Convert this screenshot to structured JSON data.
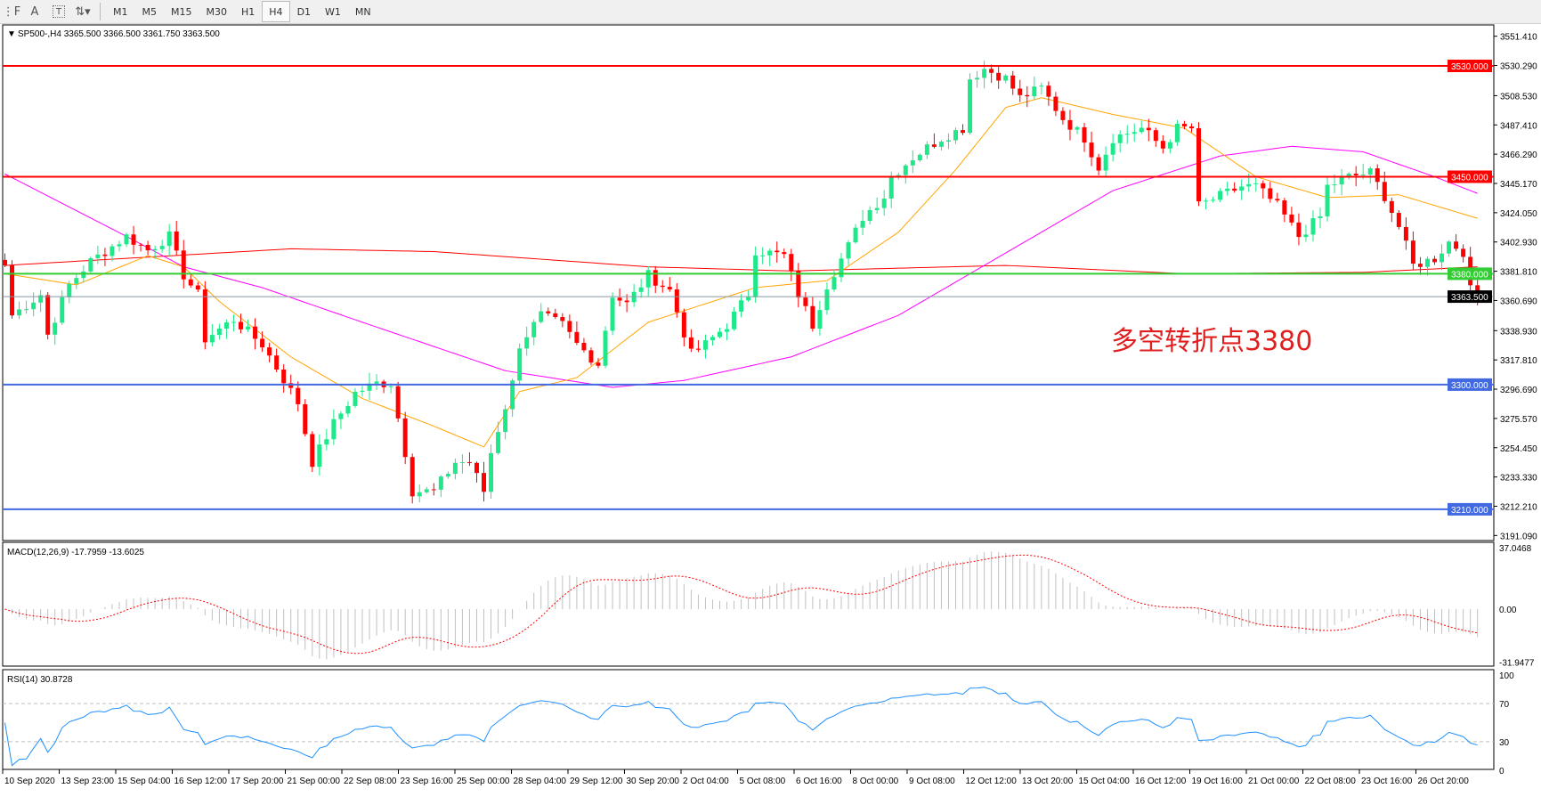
{
  "toolbar": {
    "tools": [
      {
        "icon": "fibo-icon"
      },
      {
        "icon": "text-icon",
        "label": "A"
      },
      {
        "icon": "text-label-icon",
        "label": "T"
      },
      {
        "icon": "arrows-icon"
      }
    ],
    "timeframes": [
      "M1",
      "M5",
      "M15",
      "M30",
      "H1",
      "H4",
      "D1",
      "W1",
      "MN"
    ],
    "active_timeframe": "H4"
  },
  "chart_data": {
    "type": "candlestick",
    "symbol_header": "SP500-,H4  3365.500 3366.500 3361.750 3363.500",
    "ylim": [
      3191.09,
      3551.41
    ],
    "price_ticks": [
      "3551.410",
      "3530.290",
      "3508.530",
      "3487.410",
      "3466.290",
      "3445.170",
      "3424.050",
      "3402.930",
      "3381.810",
      "3360.690",
      "3338.930",
      "3317.810",
      "3296.690",
      "3275.570",
      "3254.450",
      "3233.330",
      "3212.210",
      "3191.090"
    ],
    "time_labels": [
      "10 Sep 2020",
      "13 Sep 23:00",
      "15 Sep 04:00",
      "16 Sep 12:00",
      "17 Sep 20:00",
      "21 Sep 00:00",
      "22 Sep 08:00",
      "23 Sep 16:00",
      "25 Sep 00:00",
      "28 Sep 04:00",
      "29 Sep 12:00",
      "30 Sep 20:00",
      "2 Oct 04:00",
      "5 Oct 08:00",
      "6 Oct 16:00",
      "8 Oct 00:00",
      "9 Oct 08:00",
      "12 Oct 12:00",
      "13 Oct 20:00",
      "15 Oct 04:00",
      "16 Oct 12:00",
      "19 Oct 16:00",
      "21 Oct 00:00",
      "22 Oct 08:00",
      "23 Oct 16:00",
      "26 Oct 20:00"
    ],
    "bar_count": 207,
    "close_keypoints": [
      [
        0,
        3386
      ],
      [
        1,
        3350
      ],
      [
        5,
        3365
      ],
      [
        6,
        3336
      ],
      [
        9,
        3372
      ],
      [
        12,
        3389
      ],
      [
        17,
        3407
      ],
      [
        20,
        3397
      ],
      [
        23,
        3407
      ],
      [
        25,
        3379
      ],
      [
        27,
        3365
      ],
      [
        28,
        3333
      ],
      [
        32,
        3347
      ],
      [
        36,
        3329
      ],
      [
        41,
        3287
      ],
      [
        43,
        3244
      ],
      [
        46,
        3272
      ],
      [
        49,
        3294
      ],
      [
        52,
        3301
      ],
      [
        54,
        3301
      ],
      [
        56,
        3251
      ],
      [
        57,
        3223
      ],
      [
        60,
        3223
      ],
      [
        63,
        3244
      ],
      [
        65,
        3244
      ],
      [
        67,
        3223
      ],
      [
        68,
        3251
      ],
      [
        71,
        3301
      ],
      [
        72,
        3329
      ],
      [
        75,
        3350
      ],
      [
        78,
        3343
      ],
      [
        80,
        3329
      ],
      [
        83,
        3315
      ],
      [
        85,
        3365
      ],
      [
        87,
        3358
      ],
      [
        90,
        3379
      ],
      [
        93,
        3368
      ],
      [
        96,
        3322
      ],
      [
        98,
        3329
      ],
      [
        101,
        3343
      ],
      [
        104,
        3365
      ],
      [
        105,
        3397
      ],
      [
        109,
        3393
      ],
      [
        111,
        3365
      ],
      [
        113,
        3343
      ],
      [
        115,
        3372
      ],
      [
        118,
        3400
      ],
      [
        120,
        3421
      ],
      [
        123,
        3436
      ],
      [
        124,
        3450
      ],
      [
        127,
        3464
      ],
      [
        131,
        3478
      ],
      [
        134,
        3485
      ],
      [
        135,
        3521
      ],
      [
        137,
        3528
      ],
      [
        140,
        3521
      ],
      [
        142,
        3507
      ],
      [
        145,
        3514
      ],
      [
        148,
        3492
      ],
      [
        151,
        3478
      ],
      [
        153,
        3457
      ],
      [
        155,
        3478
      ],
      [
        159,
        3485
      ],
      [
        162,
        3471
      ],
      [
        164,
        3485
      ],
      [
        166,
        3485
      ],
      [
        167,
        3429
      ],
      [
        170,
        3436
      ],
      [
        173,
        3443
      ],
      [
        175,
        3443
      ],
      [
        178,
        3429
      ],
      [
        181,
        3407
      ],
      [
        184,
        3421
      ],
      [
        185,
        3443
      ],
      [
        188,
        3450
      ],
      [
        191,
        3453
      ],
      [
        193,
        3436
      ],
      [
        195,
        3414
      ],
      [
        197,
        3386
      ],
      [
        200,
        3391
      ],
      [
        202,
        3403
      ],
      [
        204,
        3396
      ],
      [
        205,
        3368
      ],
      [
        206,
        3363.5
      ]
    ],
    "ma_fast_keypoints": [
      [
        0,
        3380
      ],
      [
        10,
        3372
      ],
      [
        20,
        3393
      ],
      [
        25,
        3385
      ],
      [
        30,
        3360
      ],
      [
        40,
        3320
      ],
      [
        50,
        3290
      ],
      [
        60,
        3270
      ],
      [
        67,
        3255
      ],
      [
        72,
        3295
      ],
      [
        80,
        3305
      ],
      [
        90,
        3345
      ],
      [
        96,
        3355
      ],
      [
        105,
        3370
      ],
      [
        115,
        3375
      ],
      [
        125,
        3410
      ],
      [
        133,
        3455
      ],
      [
        140,
        3500
      ],
      [
        145,
        3507
      ],
      [
        155,
        3495
      ],
      [
        165,
        3485
      ],
      [
        175,
        3450
      ],
      [
        185,
        3435
      ],
      [
        195,
        3437
      ],
      [
        206,
        3420
      ]
    ],
    "ma_mid_keypoints": [
      [
        0,
        3452
      ],
      [
        17,
        3407
      ],
      [
        25,
        3385
      ],
      [
        36,
        3370
      ],
      [
        50,
        3345
      ],
      [
        70,
        3310
      ],
      [
        85,
        3298
      ],
      [
        95,
        3303
      ],
      [
        110,
        3320
      ],
      [
        125,
        3350
      ],
      [
        140,
        3395
      ],
      [
        155,
        3440
      ],
      [
        170,
        3465
      ],
      [
        180,
        3472
      ],
      [
        190,
        3468
      ],
      [
        200,
        3450
      ],
      [
        206,
        3438
      ]
    ],
    "ma_slow_keypoints": [
      [
        0,
        3386
      ],
      [
        40,
        3398
      ],
      [
        60,
        3396
      ],
      [
        90,
        3385
      ],
      [
        110,
        3382
      ],
      [
        140,
        3386
      ],
      [
        165,
        3380
      ],
      [
        190,
        3381
      ],
      [
        206,
        3385
      ]
    ],
    "levels": [
      {
        "price": 3530,
        "label": "3530.000",
        "color": "#ff0000"
      },
      {
        "price": 3450,
        "label": "3450.000",
        "color": "#ff0000"
      },
      {
        "price": 3380,
        "label": "3380.000",
        "color": "#32cd32"
      },
      {
        "price": 3300,
        "label": "3300.000",
        "color": "#4169e1"
      },
      {
        "price": 3210,
        "label": "3210.000",
        "color": "#4169e1"
      }
    ],
    "current_price": {
      "price": 3363.5,
      "label": "3363.500"
    },
    "annotation": "多空转折点3380",
    "colors": {
      "bull": "#1ee88a",
      "bear": "#ff0000",
      "ma_fast": "#ffa500",
      "ma_mid": "#ff00ff",
      "ma_slow": "#ff0000"
    },
    "macd": {
      "header": "MACD(12,26,9) -17.7959 -13.6025",
      "ylim": [
        -31.9477,
        37.0468
      ],
      "ticks": [
        "37.0468",
        "0.00",
        "-31.9477"
      ]
    },
    "rsi": {
      "header": "RSI(14) 30.8728",
      "ylim": [
        0,
        100
      ],
      "ticks": [
        "100",
        "70",
        "30",
        "0"
      ],
      "levels": [
        70,
        30
      ]
    }
  }
}
